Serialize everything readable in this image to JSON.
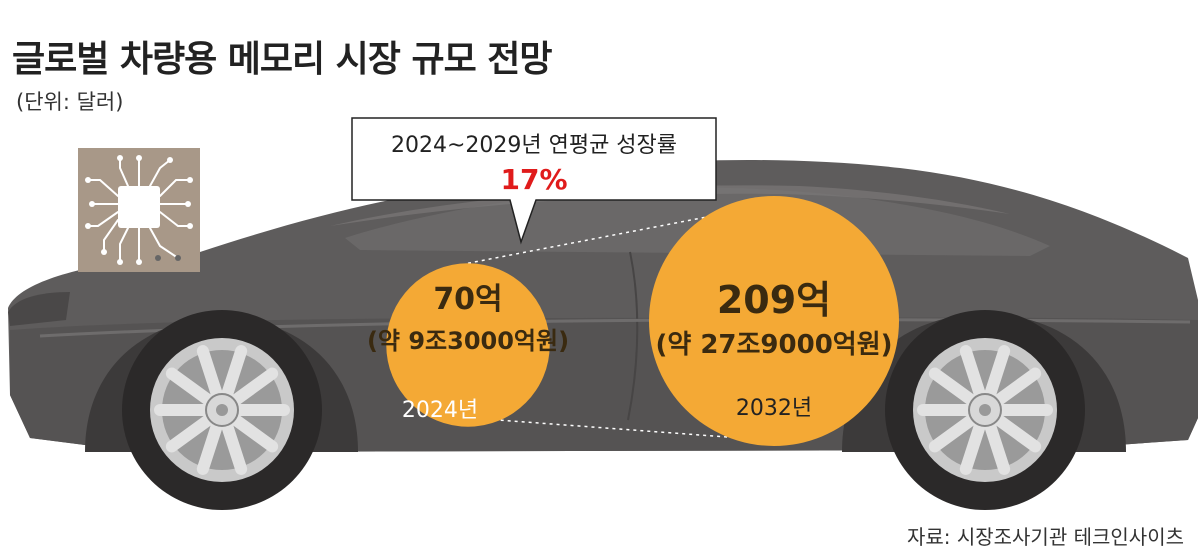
{
  "header": {
    "title": "글로벌 차량용 메모리 시장 규모 전망",
    "unit": "(단위: 달러)"
  },
  "callout": {
    "label": "2024~2029년 연평균 성장률",
    "value": "17%"
  },
  "source": "자료: 시장조사기관 테크인사이츠",
  "colors": {
    "bubble": "#F4A935",
    "car_body": "#5d5b5b",
    "highlight": "#e01b1b"
  },
  "icons": [
    "memory-chip-icon",
    "car-illustration"
  ],
  "chart_data": {
    "type": "bubble",
    "title": "글로벌 차량용 메모리 시장 규모 전망",
    "unit": "(단위: 달러)",
    "cagr": {
      "period": "2024~2029년",
      "label": "연평균 성장률",
      "value": 17,
      "text": "17%"
    },
    "points": [
      {
        "year": "2024년",
        "value": 7000000000,
        "label": "70억",
        "sublabel": "(약 9조3000억원)"
      },
      {
        "year": "2032년",
        "value": 20900000000,
        "label": "209억",
        "sublabel": "(약 27조9000억원)"
      }
    ]
  }
}
